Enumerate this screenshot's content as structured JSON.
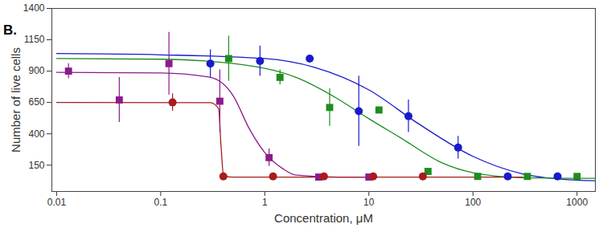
{
  "chart_data": {
    "type": "scatter",
    "title": "B.",
    "x_label": "Concentration, μM",
    "y_label": "Number of live cells",
    "log": "x",
    "grid": false,
    "xlim": [
      0.009,
      1500
    ],
    "xticks": [
      0.01,
      0.1,
      1,
      10,
      100,
      1000
    ],
    "ylim": [
      -60,
      1400
    ],
    "yticks": [
      150,
      400,
      650,
      900,
      1150,
      1400
    ],
    "series": [
      {
        "type": "line",
        "color": "#1a1acc",
        "line_style": "solid",
        "x": [
          0.01,
          0.1,
          1,
          3,
          10,
          30,
          100,
          300,
          1000,
          1500
        ],
        "values": [
          1040,
          1030,
          1000,
          930,
          750,
          480,
          220,
          80,
          30,
          25
        ]
      },
      {
        "type": "line",
        "color": "#1e8c1e",
        "line_style": "solid",
        "x": [
          0.01,
          0.1,
          0.5,
          2,
          5,
          10,
          20,
          50,
          100,
          300,
          1000,
          1500
        ],
        "values": [
          1000,
          995,
          960,
          850,
          680,
          520,
          370,
          170,
          90,
          50,
          45,
          45
        ]
      },
      {
        "type": "line",
        "color": "#8c1a8c",
        "line_style": "solid",
        "x": [
          0.01,
          0.1,
          0.3,
          0.5,
          0.7,
          1,
          1.5,
          2,
          5,
          10
        ],
        "values": [
          890,
          885,
          850,
          700,
          450,
          250,
          120,
          70,
          55,
          55
        ]
      },
      {
        "type": "line",
        "color": "#a81c1c",
        "line_style": "solid",
        "x": [
          0.01,
          0.3,
          0.36,
          0.38,
          0.4,
          0.45,
          0.5,
          300
        ],
        "values": [
          650,
          648,
          600,
          300,
          80,
          56,
          55,
          55
        ]
      },
      {
        "type": "scatter",
        "color": "#1a1acc",
        "marker": "circle",
        "x": [
          0.3,
          0.9,
          2.7,
          8,
          24,
          72,
          216,
          650
        ],
        "values": [
          960,
          980,
          1000,
          580,
          540,
          290,
          60,
          60
        ],
        "error": [
          110,
          120,
          20,
          280,
          130,
          90,
          0,
          0
        ]
      },
      {
        "type": "scatter",
        "color": "#1e8c1e",
        "marker": "square",
        "x": [
          0.45,
          1.4,
          4.2,
          12.5,
          37,
          111,
          333,
          1000
        ],
        "values": [
          1000,
          850,
          610,
          590,
          100,
          60,
          60,
          60
        ],
        "error": [
          180,
          60,
          150,
          20,
          0,
          0,
          0,
          0
        ]
      },
      {
        "type": "scatter",
        "color": "#8c1a8c",
        "marker": "square",
        "x": [
          0.013,
          0.04,
          0.12,
          0.37,
          1.1,
          3.3,
          10
        ],
        "values": [
          900,
          670,
          960,
          660,
          210,
          55,
          55
        ],
        "error": [
          60,
          180,
          250,
          250,
          70,
          0,
          0
        ]
      },
      {
        "type": "scatter",
        "color": "#a81c1c",
        "marker": "circle",
        "x": [
          0.13,
          0.4,
          1.2,
          3.7,
          11,
          33
        ],
        "values": [
          650,
          60,
          60,
          60,
          60,
          60
        ],
        "error": [
          70,
          0,
          0,
          0,
          0,
          0
        ]
      }
    ]
  }
}
